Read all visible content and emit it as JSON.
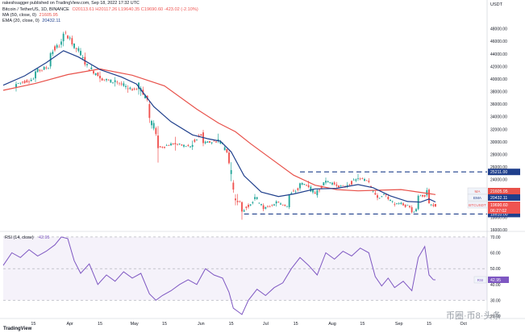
{
  "publisher": {
    "text": "rakeshsagger published on TradingView.com, Sep 18, 2022 17:32 UTC"
  },
  "header": {
    "symbol": "Bitcoin / TetherUS, 1D, BINANCE",
    "ohlc": "O20113.61  H20117.26  L19640.35  C19690.60  -423.02 (-2.10%)",
    "ma_label": "MA (50, close, 0)",
    "ma_value": "21605.95",
    "ema_label": "EMA (20, close, 0)",
    "ema_value": "20432.11",
    "currency": "USDT"
  },
  "colors": {
    "up": "#26a69a",
    "down": "#ef5350",
    "ma": "#e8514a",
    "ema": "#1f3f8c",
    "rsi": "#7e57c2",
    "rsi_band": "rgba(126,87,194,0.08)",
    "support_label": "#1f3f8c",
    "level_line": "#1f3f8c"
  },
  "chart_data": [
    {
      "type": "candlestick",
      "title": "Bitcoin / TetherUS, 1D, BINANCE",
      "currency": "USDT",
      "ylim": [
        16000,
        50000
      ],
      "y_ticks": [
        "48000.00",
        "46000.00",
        "44000.00",
        "42000.00",
        "40000.00",
        "38000.00",
        "36000.00",
        "34000.00",
        "32000.00",
        "30000.00",
        "28000.00",
        "26000.00",
        "24000.00",
        "22000.00",
        "20000.00",
        "18000.00",
        "16000.00"
      ],
      "x_tick_labels": [
        "15",
        "Apr",
        "15",
        "May",
        "15",
        "Jun",
        "15",
        "Jul",
        "15",
        "Aug",
        "15",
        "Sep",
        "15",
        "Oct"
      ],
      "x_tick_days": [
        14,
        31,
        45,
        61,
        75,
        92,
        106,
        122,
        136,
        153,
        167,
        184,
        198,
        214
      ],
      "x_range_days": [
        0,
        225
      ],
      "x_unit": "day index from Mar 1 2022",
      "ohlc_key_points": [
        {
          "day": 6,
          "o": 38700,
          "h": 39600,
          "l": 38000,
          "c": 39200
        },
        {
          "day": 15,
          "o": 40100,
          "h": 41500,
          "l": 39500,
          "c": 41200
        },
        {
          "day": 22,
          "o": 42000,
          "h": 44300,
          "l": 41600,
          "c": 44100
        },
        {
          "day": 28,
          "o": 46000,
          "h": 47500,
          "l": 45200,
          "c": 47200
        },
        {
          "day": 32,
          "o": 46500,
          "h": 46900,
          "l": 45200,
          "c": 45500
        },
        {
          "day": 38,
          "o": 43500,
          "h": 44200,
          "l": 42000,
          "c": 42300
        },
        {
          "day": 45,
          "o": 40500,
          "h": 41200,
          "l": 39500,
          "c": 40100
        },
        {
          "day": 52,
          "o": 39500,
          "h": 40300,
          "l": 38800,
          "c": 39800
        },
        {
          "day": 58,
          "o": 38500,
          "h": 39000,
          "l": 37800,
          "c": 38400
        },
        {
          "day": 63,
          "o": 38400,
          "h": 39500,
          "l": 37500,
          "c": 39400
        },
        {
          "day": 68,
          "o": 36000,
          "h": 36500,
          "l": 33000,
          "c": 33800
        },
        {
          "day": 72,
          "o": 31000,
          "h": 32500,
          "l": 26700,
          "c": 29000
        },
        {
          "day": 80,
          "o": 29800,
          "h": 30800,
          "l": 28600,
          "c": 29600
        },
        {
          "day": 88,
          "o": 29200,
          "h": 30200,
          "l": 28700,
          "c": 29500
        },
        {
          "day": 93,
          "o": 31500,
          "h": 31900,
          "l": 29300,
          "c": 29800
        },
        {
          "day": 100,
          "o": 30100,
          "h": 31300,
          "l": 29800,
          "c": 30400
        },
        {
          "day": 105,
          "o": 28300,
          "h": 28600,
          "l": 26400,
          "c": 26600
        },
        {
          "day": 107,
          "o": 23500,
          "h": 23900,
          "l": 21900,
          "c": 22400
        },
        {
          "day": 109,
          "o": 20600,
          "h": 21700,
          "l": 19900,
          "c": 20400
        },
        {
          "day": 111,
          "o": 20400,
          "h": 20500,
          "l": 17600,
          "c": 18900
        },
        {
          "day": 117,
          "o": 20900,
          "h": 21700,
          "l": 20600,
          "c": 21200
        },
        {
          "day": 121,
          "o": 19900,
          "h": 20200,
          "l": 18950,
          "c": 19300
        },
        {
          "day": 127,
          "o": 20200,
          "h": 20700,
          "l": 19700,
          "c": 20500
        },
        {
          "day": 133,
          "o": 19600,
          "h": 21700,
          "l": 19300,
          "c": 21500
        },
        {
          "day": 138,
          "o": 22600,
          "h": 23500,
          "l": 22200,
          "c": 23400
        },
        {
          "day": 142,
          "o": 23100,
          "h": 23800,
          "l": 22600,
          "c": 22800
        },
        {
          "day": 146,
          "o": 21500,
          "h": 22500,
          "l": 21100,
          "c": 22300
        },
        {
          "day": 150,
          "o": 23500,
          "h": 24300,
          "l": 23200,
          "c": 23800
        },
        {
          "day": 155,
          "o": 23200,
          "h": 23600,
          "l": 22700,
          "c": 23000
        },
        {
          "day": 160,
          "o": 22800,
          "h": 23600,
          "l": 22600,
          "c": 23100
        },
        {
          "day": 165,
          "o": 24100,
          "h": 24900,
          "l": 23800,
          "c": 24200
        },
        {
          "day": 170,
          "o": 23800,
          "h": 24200,
          "l": 23400,
          "c": 23600
        },
        {
          "day": 174,
          "o": 21500,
          "h": 21800,
          "l": 20700,
          "c": 21100
        },
        {
          "day": 178,
          "o": 21600,
          "h": 21800,
          "l": 21200,
          "c": 21500
        },
        {
          "day": 182,
          "o": 20100,
          "h": 20400,
          "l": 19700,
          "c": 20000
        },
        {
          "day": 186,
          "o": 20200,
          "h": 20400,
          "l": 19800,
          "c": 19900
        },
        {
          "day": 190,
          "o": 19600,
          "h": 19900,
          "l": 18600,
          "c": 18800
        },
        {
          "day": 193,
          "o": 19300,
          "h": 21600,
          "l": 19100,
          "c": 21400
        },
        {
          "day": 197,
          "o": 21500,
          "h": 22700,
          "l": 21200,
          "c": 22300
        },
        {
          "day": 198,
          "o": 22400,
          "h": 22600,
          "l": 20200,
          "c": 20200
        },
        {
          "day": 200,
          "o": 20000,
          "h": 20300,
          "l": 19600,
          "c": 19800
        },
        {
          "day": 201,
          "o": 20113.61,
          "h": 20117.26,
          "l": 19640.35,
          "c": 19690.6
        }
      ],
      "ma50": [
        [
          0,
          38200
        ],
        [
          15,
          39300
        ],
        [
          30,
          40700
        ],
        [
          45,
          41600
        ],
        [
          60,
          40600
        ],
        [
          75,
          38900
        ],
        [
          90,
          35200
        ],
        [
          100,
          33000
        ],
        [
          108,
          31600
        ],
        [
          115,
          29700
        ],
        [
          125,
          27200
        ],
        [
          135,
          24700
        ],
        [
          145,
          23100
        ],
        [
          155,
          22400
        ],
        [
          165,
          22200
        ],
        [
          175,
          22300
        ],
        [
          185,
          22400
        ],
        [
          195,
          21900
        ],
        [
          201,
          21605.95
        ]
      ],
      "ema20": [
        [
          0,
          39000
        ],
        [
          10,
          40500
        ],
        [
          20,
          42600
        ],
        [
          28,
          44500
        ],
        [
          35,
          43500
        ],
        [
          45,
          41500
        ],
        [
          55,
          40300
        ],
        [
          62,
          39200
        ],
        [
          70,
          35600
        ],
        [
          78,
          33200
        ],
        [
          88,
          31100
        ],
        [
          95,
          30500
        ],
        [
          101,
          30100
        ],
        [
          106,
          28400
        ],
        [
          112,
          24600
        ],
        [
          120,
          22000
        ],
        [
          128,
          21300
        ],
        [
          135,
          21700
        ],
        [
          145,
          22500
        ],
        [
          155,
          22600
        ],
        [
          165,
          23200
        ],
        [
          172,
          22700
        ],
        [
          180,
          21400
        ],
        [
          188,
          20500
        ],
        [
          194,
          20400
        ],
        [
          198,
          20900
        ],
        [
          201,
          20432.11
        ]
      ],
      "horizontal_levels": [
        {
          "value": 25211.0,
          "label": "25211.00",
          "style": "dashed"
        },
        {
          "value": 18510.0,
          "label": "18510.00",
          "style": "dashed"
        }
      ],
      "price_labels": [
        {
          "text": "21605.95",
          "series": "MA"
        },
        {
          "text": "20432.11",
          "series": "EMA"
        },
        {
          "text": "19690.60",
          "series": "BTCUSDT"
        },
        {
          "text": "06:27:02",
          "series": "countdown"
        }
      ],
      "legend_names": [
        "MA",
        "EMA",
        "BTCUSDT"
      ]
    },
    {
      "type": "line",
      "title": "RSI (14, close)",
      "value_label": "42.95",
      "ylim": [
        20,
        72
      ],
      "y_ticks": [
        "70.00",
        "60.00",
        "50.00",
        "40.00",
        "30.00",
        "20.00"
      ],
      "band": [
        30,
        70
      ],
      "series": [
        {
          "name": "RSI",
          "points": [
            [
              0,
              52
            ],
            [
              4,
              60
            ],
            [
              8,
              57
            ],
            [
              12,
              62
            ],
            [
              16,
              58
            ],
            [
              20,
              61
            ],
            [
              24,
              65
            ],
            [
              27,
              70
            ],
            [
              30,
              69
            ],
            [
              33,
              55
            ],
            [
              36,
              47
            ],
            [
              40,
              53
            ],
            [
              44,
              40
            ],
            [
              48,
              46
            ],
            [
              52,
              42
            ],
            [
              56,
              48
            ],
            [
              60,
              44
            ],
            [
              64,
              47
            ],
            [
              68,
              34
            ],
            [
              71,
              30
            ],
            [
              74,
              33
            ],
            [
              78,
              36
            ],
            [
              82,
              40
            ],
            [
              86,
              43
            ],
            [
              90,
              40
            ],
            [
              94,
              50
            ],
            [
              98,
              46
            ],
            [
              102,
              44
            ],
            [
              105,
              35
            ],
            [
              107,
              25
            ],
            [
              109,
              23
            ],
            [
              111,
              21
            ],
            [
              114,
              30
            ],
            [
              118,
              37
            ],
            [
              122,
              33
            ],
            [
              126,
              38
            ],
            [
              130,
              41
            ],
            [
              134,
              50
            ],
            [
              138,
              57
            ],
            [
              142,
              52
            ],
            [
              146,
              46
            ],
            [
              150,
              60
            ],
            [
              154,
              56
            ],
            [
              158,
              61
            ],
            [
              162,
              58
            ],
            [
              166,
              63
            ],
            [
              170,
              60
            ],
            [
              173,
              45
            ],
            [
              176,
              39
            ],
            [
              179,
              44
            ],
            [
              182,
              38
            ],
            [
              186,
              42
            ],
            [
              190,
              36
            ],
            [
              193,
              57
            ],
            [
              196,
              64
            ],
            [
              198,
              46
            ],
            [
              200,
              43
            ],
            [
              201,
              42.95
            ]
          ]
        }
      ],
      "rsi_value": "42.95"
    }
  ],
  "watermark": {
    "text": "币圈·币8·头条"
  },
  "footer": {
    "logo": "TradingView"
  }
}
